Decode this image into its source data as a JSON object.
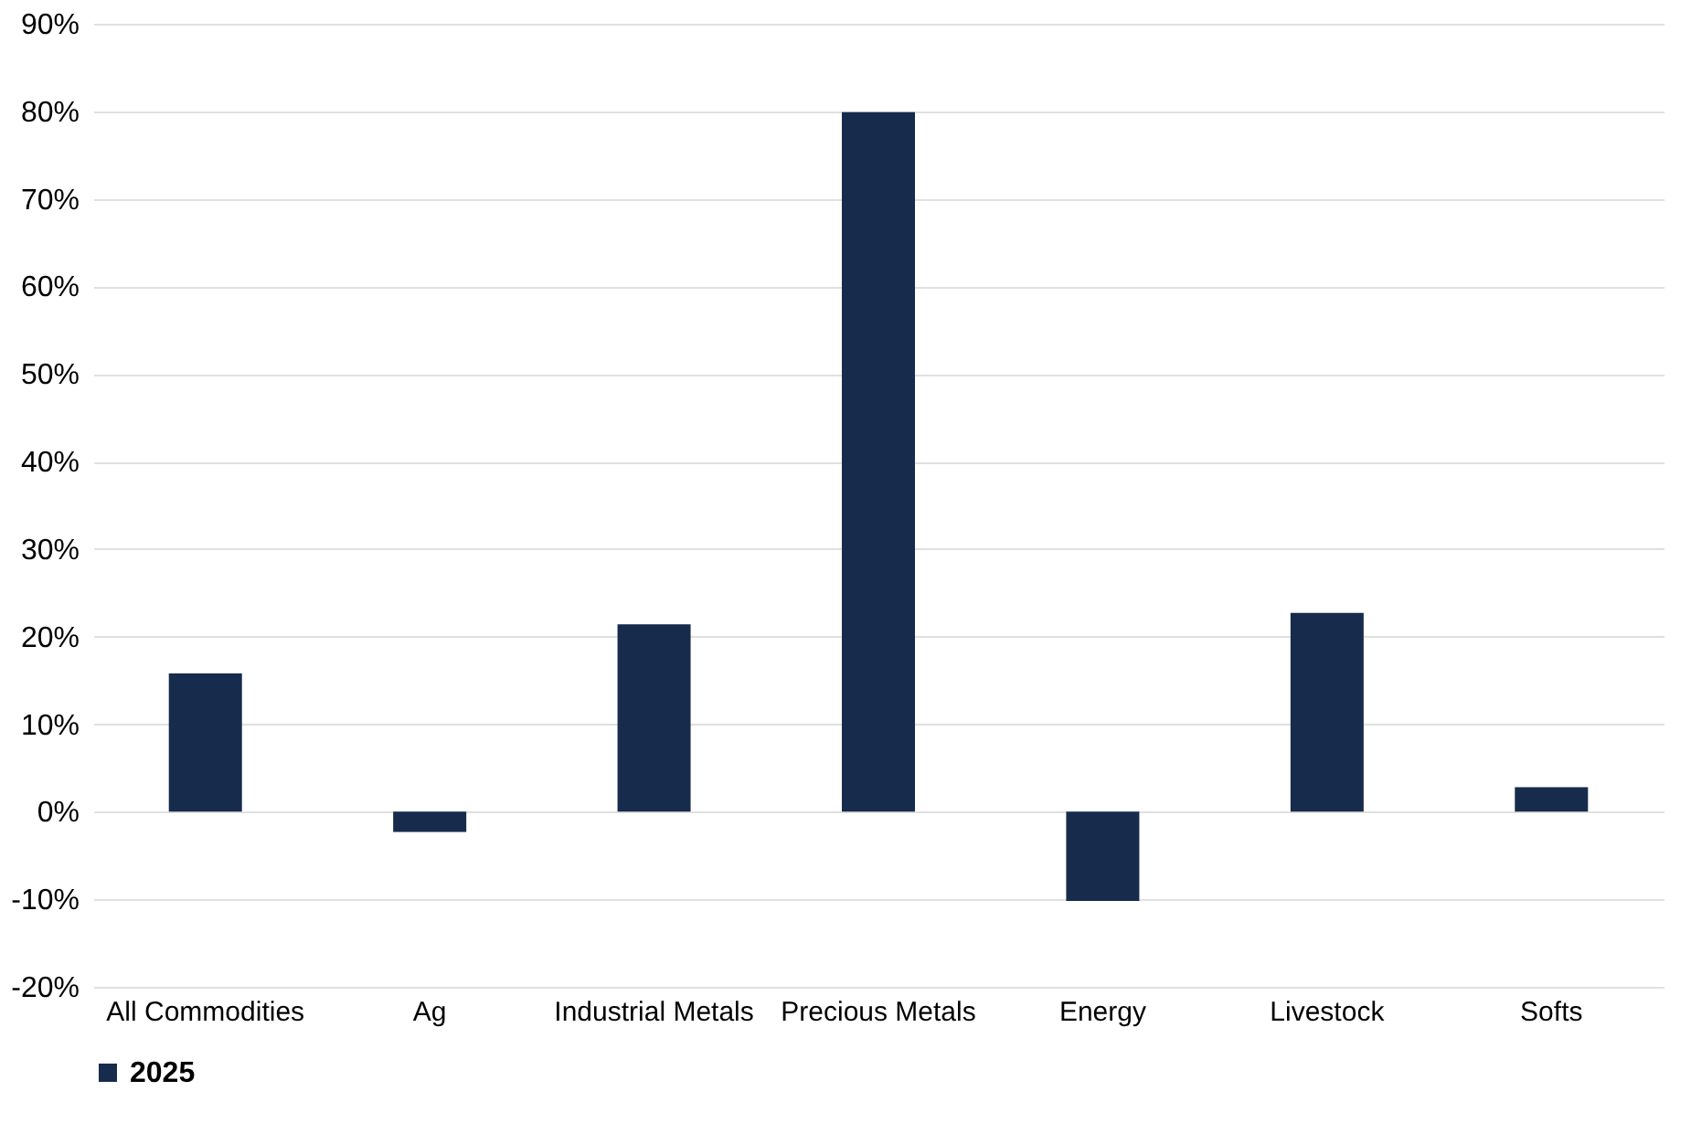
{
  "chart_data": {
    "type": "bar",
    "categories": [
      "All Commodities",
      "Ag",
      "Industrial Metals",
      "Precious Metals",
      "Energy",
      "Livestock",
      "Softs"
    ],
    "series": [
      {
        "name": "2025",
        "color": "#172b4d",
        "values": [
          15.8,
          -2.3,
          21.4,
          79.9,
          -10.2,
          22.7,
          2.8
        ]
      }
    ],
    "ylim": [
      -20,
      90
    ],
    "yticks": [
      {
        "value": -20,
        "label": "-20%"
      },
      {
        "value": -10,
        "label": "-10%"
      },
      {
        "value": 0,
        "label": "0%"
      },
      {
        "value": 10,
        "label": "10%"
      },
      {
        "value": 20,
        "label": "20%"
      },
      {
        "value": 30,
        "label": "30%"
      },
      {
        "value": 40,
        "label": "40%"
      },
      {
        "value": 50,
        "label": "50%"
      },
      {
        "value": 60,
        "label": "60%"
      },
      {
        "value": 70,
        "label": "70%"
      },
      {
        "value": 80,
        "label": "80%"
      },
      {
        "value": 90,
        "label": "90%"
      }
    ],
    "grid": "y",
    "legend": "bottom"
  }
}
